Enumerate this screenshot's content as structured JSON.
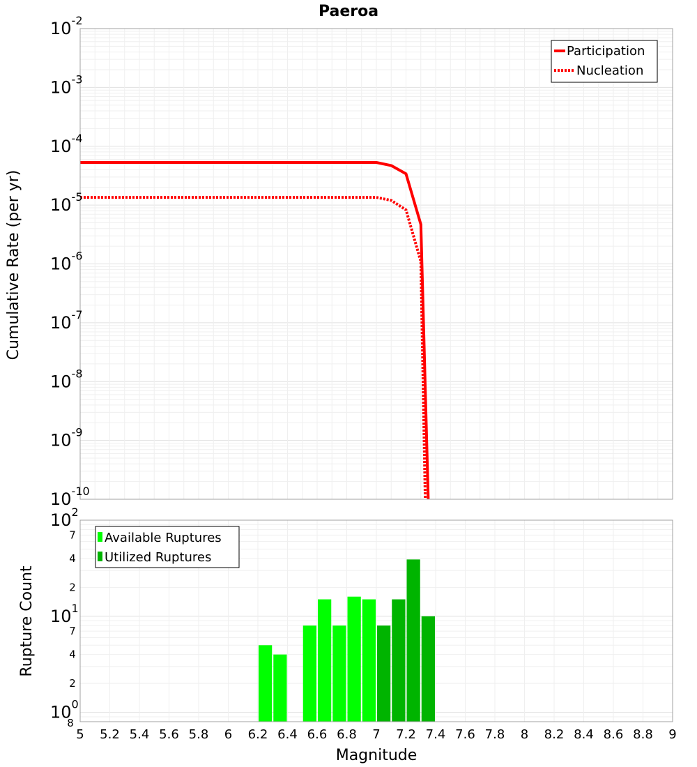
{
  "chart_data": [
    {
      "type": "line",
      "title": "Paeroa",
      "xlabel": "",
      "ylabel": "Cumulative Rate (per yr)",
      "yscale": "log",
      "xlim": [
        5,
        9
      ],
      "ylim": [
        1e-10,
        0.01
      ],
      "y_tick_exponents": [
        "-2",
        "-3",
        "-4",
        "-5",
        "-6",
        "-7",
        "-8",
        "-9",
        "-10"
      ],
      "legend_position": "top-right",
      "series": [
        {
          "name": "Participation",
          "color": "#ff0000",
          "style": "solid",
          "x": [
            5.0,
            5.5,
            6.0,
            6.5,
            7.0,
            7.1,
            7.2,
            7.3,
            7.35
          ],
          "y": [
            5.3e-05,
            5.3e-05,
            5.3e-05,
            5.3e-05,
            5.3e-05,
            4.7e-05,
            3.4e-05,
            4.7e-06,
            1e-10
          ]
        },
        {
          "name": "Nucleation",
          "color": "#ff0000",
          "style": "dotted",
          "x": [
            5.0,
            5.5,
            6.0,
            6.5,
            7.0,
            7.1,
            7.2,
            7.3,
            7.33
          ],
          "y": [
            1.35e-05,
            1.35e-05,
            1.35e-05,
            1.35e-05,
            1.35e-05,
            1.2e-05,
            8.3e-06,
            1.1e-06,
            1e-10
          ]
        }
      ]
    },
    {
      "type": "bar",
      "title": "",
      "xlabel": "Magnitude",
      "ylabel": "Rupture Count",
      "yscale": "log",
      "xlim": [
        5,
        9
      ],
      "ylim": [
        0.8,
        100
      ],
      "x_ticks": [
        "5",
        "5.2",
        "5.4",
        "5.6",
        "5.8",
        "6",
        "6.2",
        "6.4",
        "6.6",
        "6.8",
        "7",
        "7.2",
        "7.4",
        "7.6",
        "7.8",
        "8",
        "8.2",
        "8.4",
        "8.6",
        "8.8",
        "9"
      ],
      "y_major_labels": [
        {
          "base": "10",
          "exp": "2"
        },
        {
          "base": "10",
          "exp": "1"
        },
        {
          "base": "10",
          "exp": "0"
        }
      ],
      "y_minor_labels": [
        "7",
        "4",
        "2",
        "7",
        "4",
        "2",
        "8"
      ],
      "legend_position": "top-left",
      "series": [
        {
          "name": "Available Ruptures",
          "color": "#00ff00",
          "x": [
            6.25,
            6.35,
            6.55,
            6.65,
            6.75,
            6.85,
            6.95
          ],
          "y": [
            5,
            4,
            8,
            15,
            8,
            16,
            15
          ]
        },
        {
          "name": "Utilized Ruptures",
          "color": "#00b400",
          "x": [
            7.05,
            7.15,
            7.25,
            7.35
          ],
          "y": [
            8,
            15,
            39,
            10
          ]
        }
      ]
    }
  ]
}
